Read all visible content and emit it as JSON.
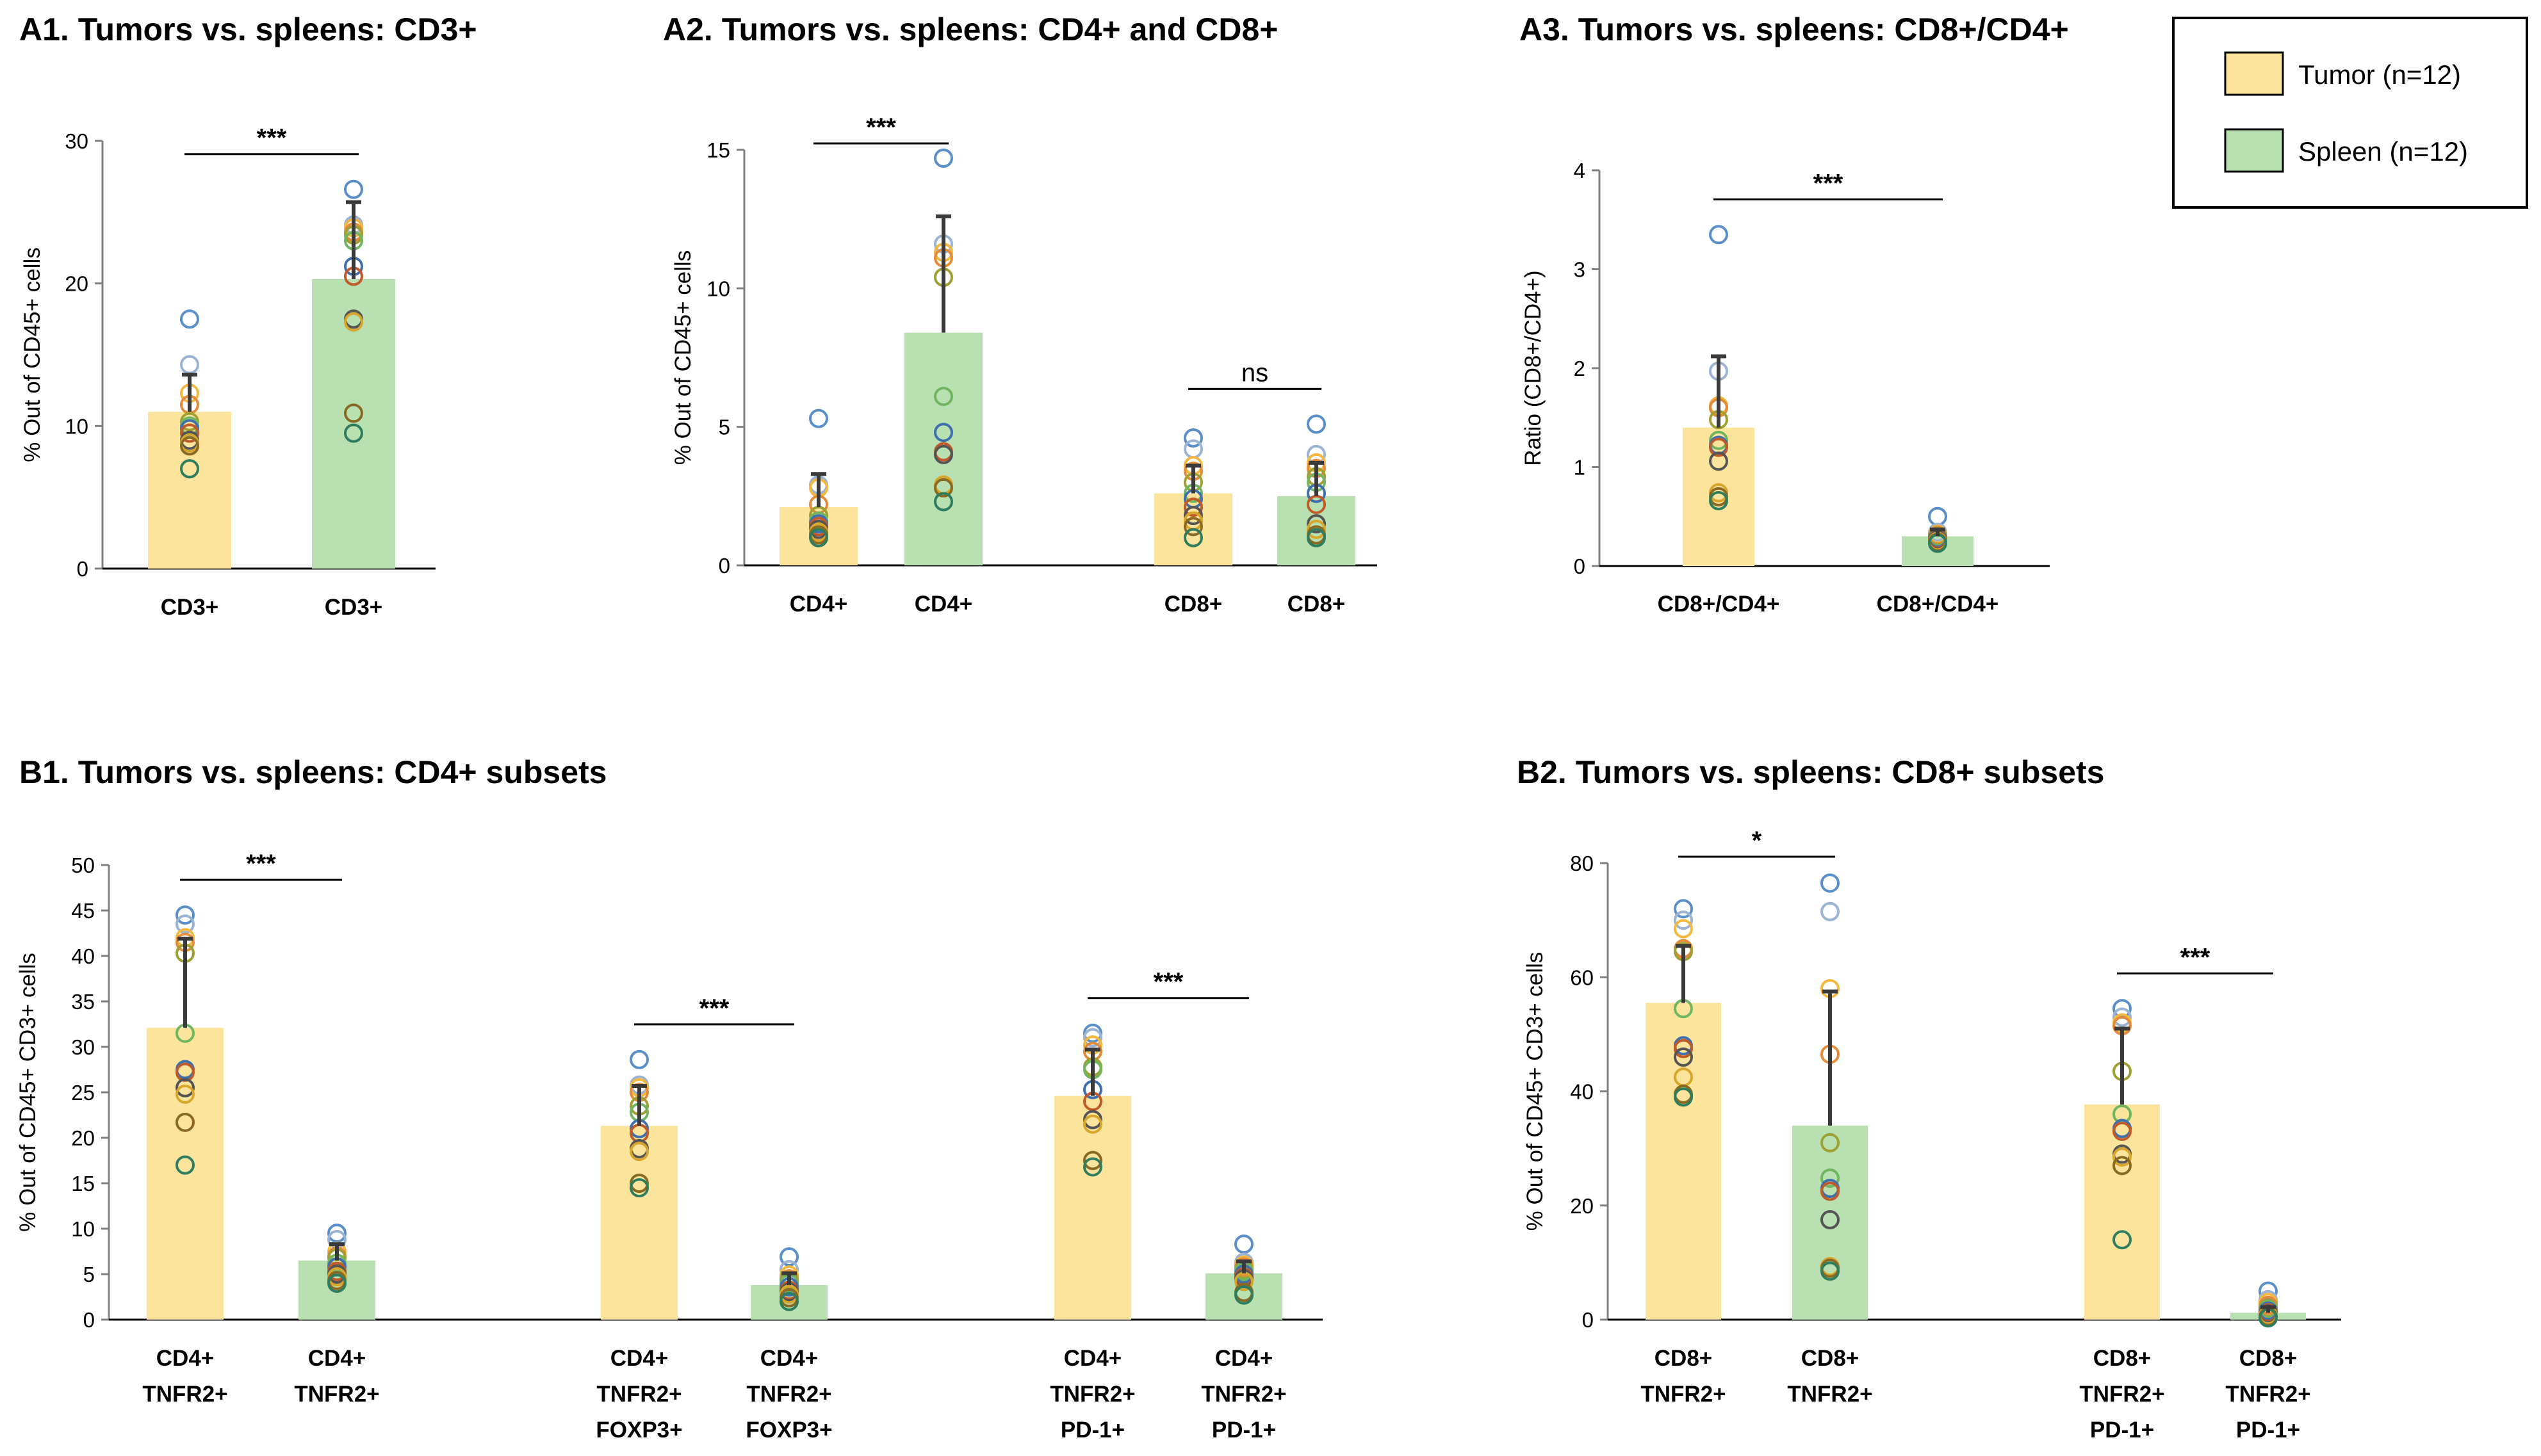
{
  "legend": {
    "tumor_label": "Tumor (n=12)",
    "spleen_label": "Spleen (n=12)",
    "tumor_color": "#fde49c",
    "spleen_color": "#b9e0b1"
  },
  "chart_data": [
    {
      "id": "A1",
      "type": "bar",
      "title": "A1. Tumors vs. spleens: CD3+",
      "ylabel": "% Out of CD45+ cells",
      "ylim": [
        0,
        30
      ],
      "yticks": [
        0,
        10,
        20,
        30
      ],
      "categories": [
        "CD3+",
        "CD3+"
      ],
      "groups": [
        "Tumor",
        "Spleen"
      ],
      "values": [
        11.0,
        20.3
      ],
      "errors": [
        2.6,
        5.4
      ],
      "points": [
        [
          17.5,
          14.3,
          12.3,
          11.5,
          10.3,
          10.0,
          9.8,
          9.5,
          9.0,
          8.8,
          8.6,
          7.0
        ],
        [
          26.6,
          24.1,
          23.9,
          23.6,
          23.4,
          23.0,
          21.2,
          20.5,
          17.5,
          17.3,
          10.9,
          9.5
        ]
      ],
      "significance": [
        {
          "label": "***",
          "between": [
            0,
            1
          ]
        }
      ]
    },
    {
      "id": "A2",
      "type": "bar",
      "title": "A2. Tumors vs. spleens: CD4+ and CD8+",
      "ylabel": "% Out of CD45+ cells",
      "ylim": [
        0,
        15
      ],
      "yticks": [
        0,
        5,
        10,
        15
      ],
      "categories": [
        "CD4+",
        "CD4+",
        "CD8+",
        "CD8+"
      ],
      "groups": [
        "Tumor",
        "Spleen",
        "Tumor",
        "Spleen"
      ],
      "values": [
        2.1,
        8.4,
        2.6,
        2.5
      ],
      "errors": [
        1.2,
        4.2,
        1.0,
        1.2
      ],
      "points": [
        [
          5.3,
          2.9,
          2.8,
          2.2,
          1.8,
          1.6,
          1.5,
          1.4,
          1.3,
          1.2,
          1.1,
          1.0
        ],
        [
          14.7,
          11.6,
          11.3,
          11.1,
          10.4,
          6.1,
          4.8,
          4.1,
          4.0,
          2.9,
          2.8,
          2.3
        ],
        [
          4.6,
          4.2,
          3.6,
          3.4,
          3.0,
          2.6,
          2.4,
          2.1,
          1.8,
          1.6,
          1.4,
          1.0
        ],
        [
          5.1,
          4.0,
          3.7,
          3.5,
          3.2,
          3.0,
          2.6,
          2.2,
          1.5,
          1.3,
          1.1,
          1.0
        ]
      ],
      "significance": [
        {
          "label": "***",
          "between": [
            0,
            1
          ]
        },
        {
          "label": "ns",
          "between": [
            2,
            3
          ]
        }
      ]
    },
    {
      "id": "A3",
      "type": "bar",
      "title": "A3. Tumors vs. spleens: CD8+/CD4+",
      "ylabel": "Ratio (CD8+/CD4+)",
      "ylim": [
        0,
        4
      ],
      "yticks": [
        0,
        1,
        2,
        3,
        4
      ],
      "categories": [
        "CD8+/CD4+",
        "CD8+/CD4+"
      ],
      "groups": [
        "Tumor",
        "Spleen"
      ],
      "values": [
        1.4,
        0.3
      ],
      "errors": [
        0.72,
        0.07
      ],
      "points": [
        [
          3.35,
          1.97,
          1.62,
          1.6,
          1.48,
          1.27,
          1.22,
          1.2,
          1.06,
          0.74,
          0.7,
          0.66
        ],
        [
          0.5,
          0.34,
          0.32,
          0.31,
          0.3,
          0.29,
          0.28,
          0.27,
          0.26,
          0.25,
          0.24,
          0.23
        ]
      ],
      "significance": [
        {
          "label": "***",
          "between": [
            0,
            1
          ]
        }
      ]
    },
    {
      "id": "B1",
      "type": "bar",
      "title": "B1. Tumors vs. spleens: CD4+ subsets",
      "ylabel": "% Out of CD45+ CD3+ cells",
      "ylim": [
        0,
        50
      ],
      "yticks": [
        0,
        5,
        10,
        15,
        20,
        25,
        30,
        35,
        40,
        45,
        50
      ],
      "categories": [
        "CD4+\nTNFR2+",
        "CD4+\nTNFR2+",
        "CD4+\nTNFR2+\nFOXP3+",
        "CD4+\nTNFR2+\nFOXP3+",
        "CD4+\nTNFR2+\nPD-1+",
        "CD4+\nTNFR2+\nPD-1+"
      ],
      "groups": [
        "Tumor",
        "Spleen",
        "Tumor",
        "Spleen",
        "Tumor",
        "Spleen"
      ],
      "values": [
        32.1,
        6.5,
        21.3,
        3.8,
        24.6,
        5.1
      ],
      "errors": [
        9.8,
        1.8,
        4.4,
        1.3,
        5.1,
        1.3
      ],
      "points": [
        [
          44.5,
          43.5,
          42.0,
          41.5,
          40.3,
          31.5,
          27.5,
          27.2,
          25.5,
          24.8,
          21.7,
          17.0
        ],
        [
          9.5,
          8.8,
          7.5,
          7.0,
          6.8,
          6.2,
          5.8,
          5.3,
          5.0,
          4.7,
          4.3,
          4.0
        ],
        [
          28.6,
          25.8,
          25.5,
          25.0,
          23.5,
          22.8,
          21.0,
          20.5,
          18.8,
          18.5,
          15.0,
          14.5
        ],
        [
          6.9,
          5.5,
          4.9,
          4.5,
          4.3,
          4.0,
          3.6,
          3.2,
          3.0,
          2.8,
          2.4,
          2.0
        ],
        [
          31.5,
          31.0,
          30.2,
          29.5,
          27.8,
          27.5,
          25.3,
          24.0,
          22.0,
          21.5,
          17.5,
          16.8
        ],
        [
          8.3,
          6.3,
          6.0,
          5.8,
          5.5,
          5.3,
          5.0,
          4.7,
          4.5,
          4.2,
          3.0,
          2.7
        ]
      ],
      "significance": [
        {
          "label": "***",
          "between": [
            0,
            1
          ]
        },
        {
          "label": "***",
          "between": [
            2,
            3
          ]
        },
        {
          "label": "***",
          "between": [
            4,
            5
          ]
        }
      ]
    },
    {
      "id": "B2",
      "type": "bar",
      "title": "B2. Tumors vs. spleens: CD8+ subsets",
      "ylabel": "% Out of CD45+ CD3+ cells",
      "ylim": [
        0,
        80
      ],
      "yticks": [
        0,
        20,
        40,
        60,
        80
      ],
      "categories": [
        "CD8+\nTNFR2+",
        "CD8+\nTNFR2+",
        "CD8+\nTNFR2+\nPD-1+",
        "CD8+\nTNFR2+\nPD-1+"
      ],
      "groups": [
        "Tumor",
        "Spleen",
        "Tumor",
        "Spleen"
      ],
      "values": [
        55.5,
        34.0,
        37.7,
        1.2
      ],
      "errors": [
        10.0,
        23.5,
        13.3,
        1.0
      ],
      "points": [
        [
          72.0,
          70.0,
          68.5,
          65.0,
          64.5,
          54.5,
          48.0,
          47.5,
          46.0,
          42.5,
          39.5,
          39.0
        ],
        [
          76.5,
          71.5,
          58.0,
          46.5,
          31.0,
          24.8,
          23.0,
          22.5,
          17.5,
          9.3,
          9.0,
          8.5
        ],
        [
          54.5,
          53.0,
          52.0,
          51.5,
          43.5,
          36.0,
          33.5,
          33.0,
          29.0,
          28.5,
          27.0,
          14.0
        ],
        [
          5.0,
          3.5,
          3.0,
          2.5,
          2.0,
          1.8,
          1.5,
          1.2,
          1.0,
          0.8,
          0.5,
          0.3
        ]
      ],
      "significance": [
        {
          "label": "*",
          "between": [
            0,
            1
          ]
        },
        {
          "label": "***",
          "between": [
            2,
            3
          ]
        }
      ]
    }
  ]
}
